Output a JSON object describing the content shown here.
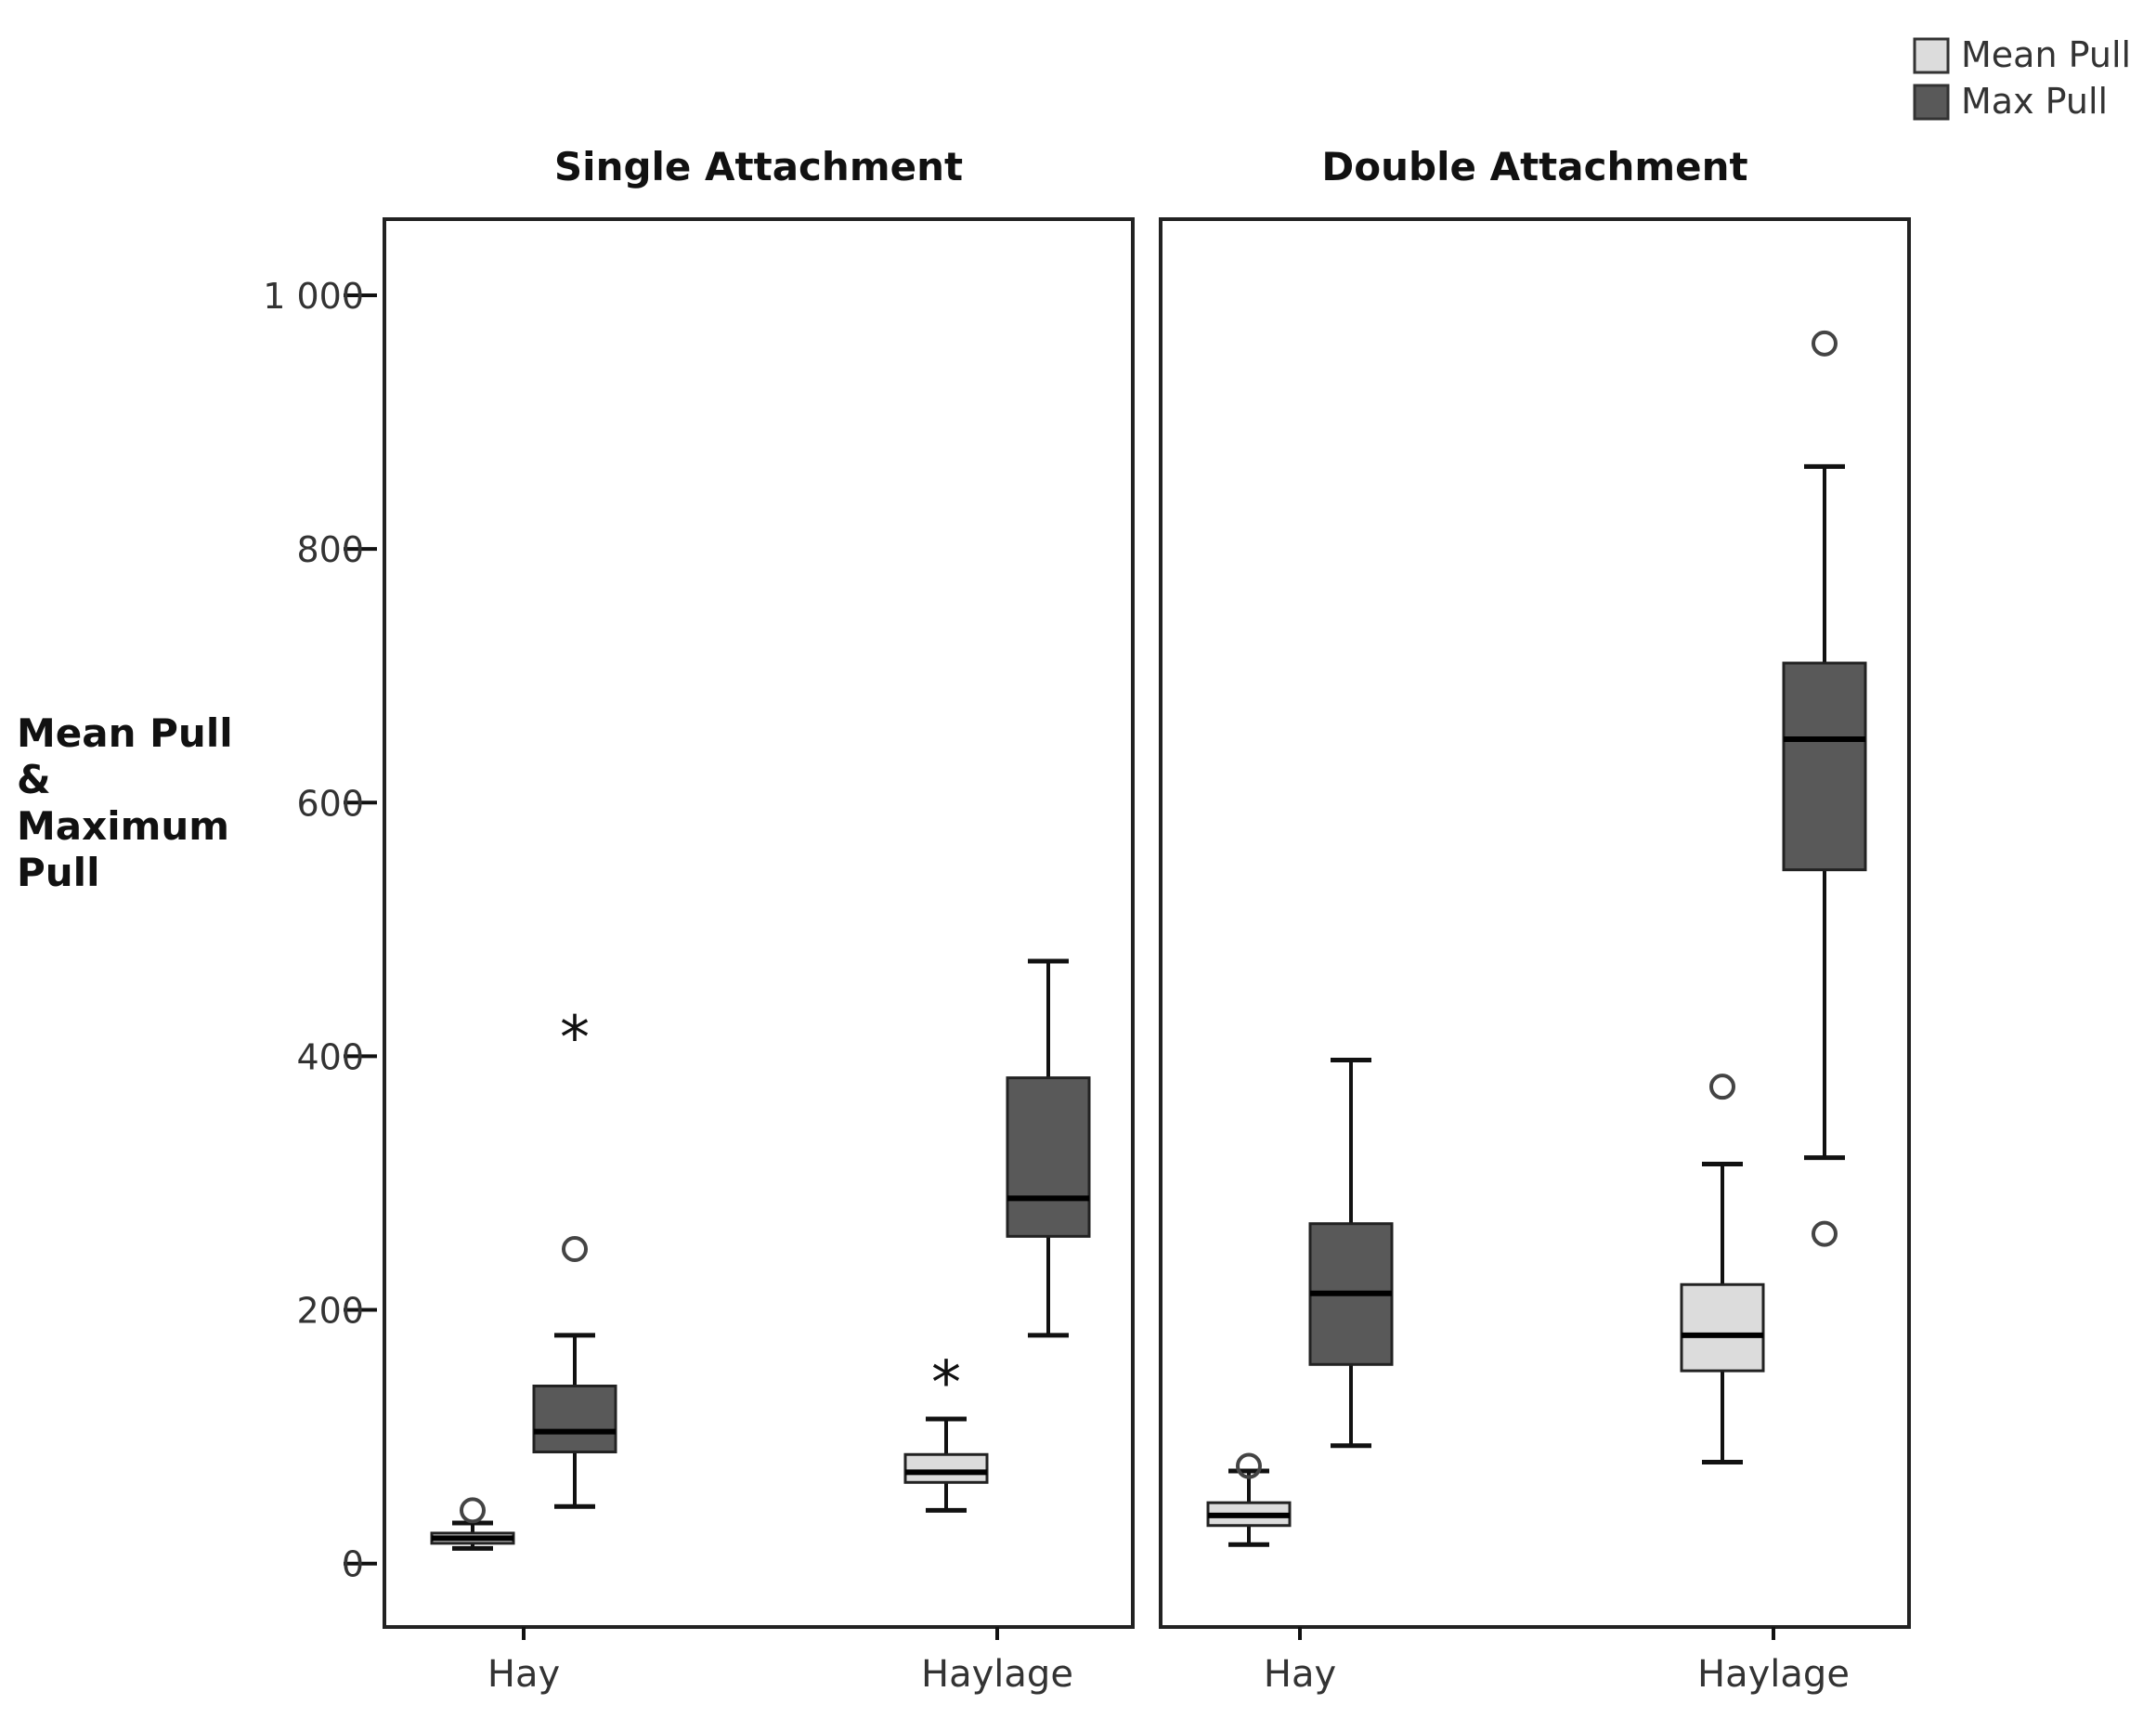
{
  "chart_data": {
    "type": "boxplot",
    "ylabel_lines": [
      "Mean Pull",
      "&",
      "Maximum",
      "Pull"
    ],
    "ylim": [
      -50,
      1060
    ],
    "yticks": [
      0,
      200,
      400,
      600,
      800,
      1000
    ],
    "ytick_labels": [
      "0",
      "200",
      "400",
      "600",
      "800",
      "1 000"
    ],
    "legend": {
      "position": "top-right",
      "items": [
        {
          "name": "Mean Pull",
          "color": "#dcdcdc"
        },
        {
          "name": "Max Pull",
          "color": "#595959"
        }
      ]
    },
    "panels": [
      {
        "title": "Single Attachment",
        "categories": [
          "Hay",
          "Haylage"
        ],
        "groups": [
          {
            "category": "Hay",
            "series": "Mean Pull",
            "whisker_low": 12,
            "q1": 16,
            "median": 20,
            "q3": 24,
            "whisker_high": 32,
            "outliers": [
              {
                "value": 42,
                "marker": "circle"
              }
            ]
          },
          {
            "category": "Hay",
            "series": "Max Pull",
            "whisker_low": 45,
            "q1": 88,
            "median": 104,
            "q3": 140,
            "whisker_high": 180,
            "outliers": [
              {
                "value": 248,
                "marker": "circle"
              },
              {
                "value": 422,
                "marker": "star"
              }
            ]
          },
          {
            "category": "Haylage",
            "series": "Mean Pull",
            "whisker_low": 42,
            "q1": 64,
            "median": 72,
            "q3": 86,
            "whisker_high": 114,
            "outliers": [
              {
                "value": 150,
                "marker": "star"
              }
            ]
          },
          {
            "category": "Haylage",
            "series": "Max Pull",
            "whisker_low": 180,
            "q1": 258,
            "median": 288,
            "q3": 383,
            "whisker_high": 475,
            "outliers": []
          }
        ]
      },
      {
        "title": "Double Attachment",
        "categories": [
          "Hay",
          "Haylage"
        ],
        "groups": [
          {
            "category": "Hay",
            "series": "Mean Pull",
            "whisker_low": 15,
            "q1": 30,
            "median": 38,
            "q3": 48,
            "whisker_high": 73,
            "outliers": [
              {
                "value": 77,
                "marker": "circle"
              }
            ]
          },
          {
            "category": "Hay",
            "series": "Max Pull",
            "whisker_low": 93,
            "q1": 157,
            "median": 213,
            "q3": 268,
            "whisker_high": 397,
            "outliers": []
          },
          {
            "category": "Haylage",
            "series": "Mean Pull",
            "whisker_low": 80,
            "q1": 152,
            "median": 180,
            "q3": 220,
            "whisker_high": 315,
            "outliers": [
              {
                "value": 376,
                "marker": "circle"
              }
            ]
          },
          {
            "category": "Haylage",
            "series": "Max Pull",
            "whisker_low": 320,
            "q1": 547,
            "median": 650,
            "q3": 710,
            "whisker_high": 865,
            "outliers": [
              {
                "value": 260,
                "marker": "circle"
              },
              {
                "value": 962,
                "marker": "circle"
              }
            ]
          }
        ]
      }
    ]
  }
}
